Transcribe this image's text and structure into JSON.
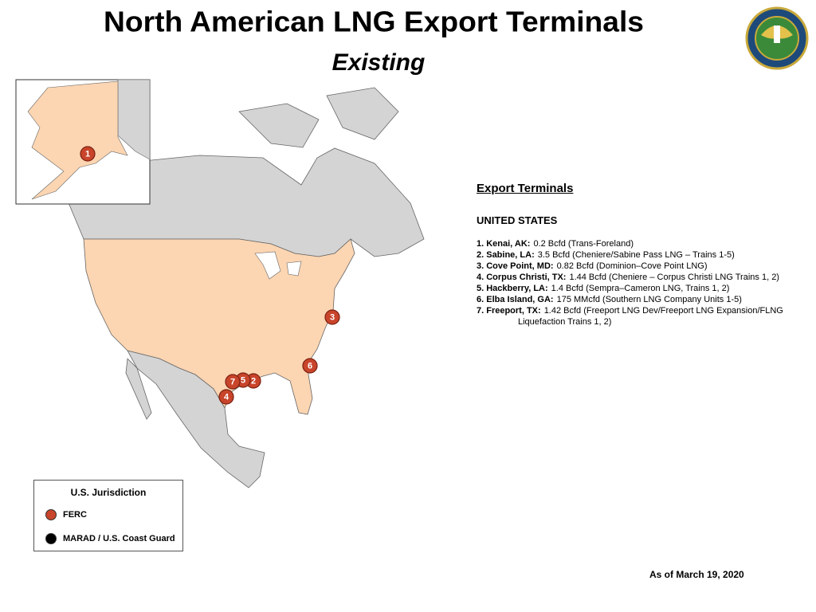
{
  "title": "North American LNG Export Terminals",
  "subtitle": "Existing",
  "map": {
    "markers": [
      {
        "label": "1"
      },
      {
        "label": "2"
      },
      {
        "label": "3"
      },
      {
        "label": "4"
      },
      {
        "label": "5"
      },
      {
        "label": "6"
      },
      {
        "label": "7"
      }
    ]
  },
  "panel": {
    "heading": "Export Terminals",
    "country": "UNITED STATES",
    "terminals": [
      {
        "name": "1. Kenai, AK:",
        "detail": "0.2 Bcfd (Trans-Foreland)"
      },
      {
        "name": "2. Sabine, LA:",
        "detail": "3.5 Bcfd (Cheniere/Sabine Pass LNG – Trains 1-5)"
      },
      {
        "name": "3. Cove Point, MD:",
        "detail": "0.82 Bcfd (Dominion–Cove Point LNG)"
      },
      {
        "name": "4. Corpus Christi, TX:",
        "detail": "1.44 Bcfd (Cheniere – Corpus Christi LNG Trains 1, 2)"
      },
      {
        "name": "5. Hackberry, LA:",
        "detail": "1.4 Bcfd (Sempra–Cameron LNG, Trains 1, 2)"
      },
      {
        "name": "6. Elba Island, GA:",
        "detail": "175 MMcfd (Southern LNG Company Units 1-5)"
      },
      {
        "name": "7. Freeport, TX:",
        "detail": "1.42 Bcfd (Freeport LNG Dev/Freeport LNG Expansion/FLNG Liquefaction Trains 1, 2)"
      }
    ]
  },
  "legend": {
    "title": "U.S. Jurisdiction",
    "items": [
      "FERC",
      "MARAD / U.S. Coast Guard"
    ]
  },
  "date": "As of March 19, 2020"
}
